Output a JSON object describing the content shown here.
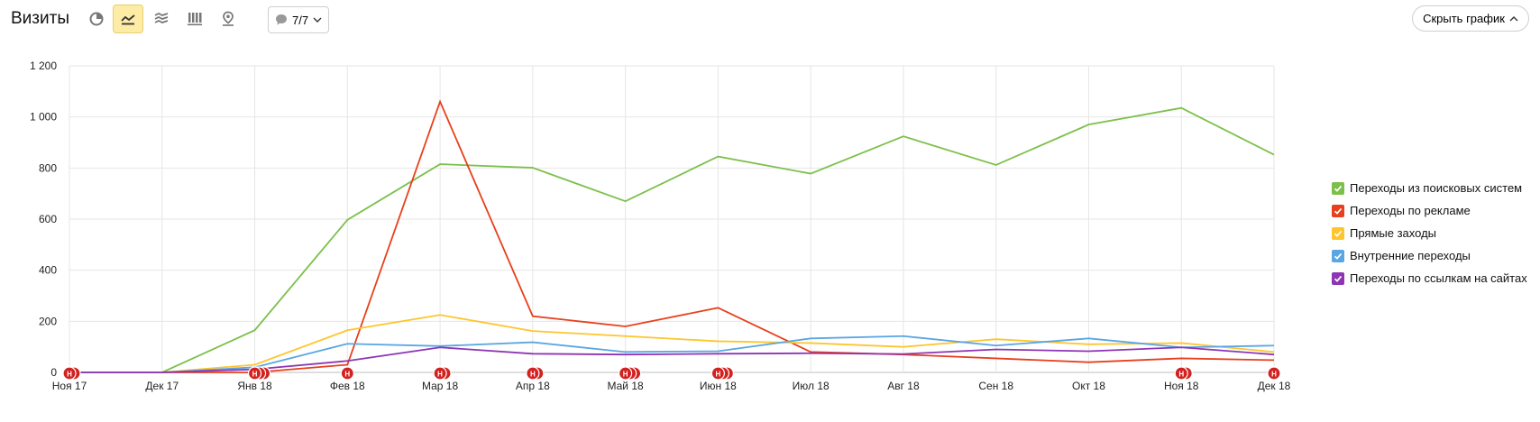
{
  "header": {
    "title": "Визиты",
    "annotations_count": "7/7",
    "hide_chart_label": "Скрыть график"
  },
  "toolbar": {
    "buttons": [
      {
        "name": "pie-chart-icon",
        "active": false
      },
      {
        "name": "line-chart-icon",
        "active": true
      },
      {
        "name": "area-chart-icon",
        "active": false
      },
      {
        "name": "bar-chart-icon",
        "active": false
      },
      {
        "name": "map-icon",
        "active": false
      }
    ]
  },
  "colors": {
    "accent": "#fdeca6",
    "annotation": "#d2211f"
  },
  "chart_data": {
    "type": "line",
    "categories": [
      "Ноя 17",
      "Дек 17",
      "Янв 18",
      "Фев 18",
      "Мар 18",
      "Апр 18",
      "Май 18",
      "Июн 18",
      "Июл 18",
      "Авг 18",
      "Сен 18",
      "Окт 18",
      "Ноя 18",
      "Дек 18"
    ],
    "ylim": [
      0,
      1200
    ],
    "yticks": [
      0,
      200,
      400,
      600,
      800,
      1000,
      1200
    ],
    "ytick_labels": [
      "0",
      "200",
      "400",
      "600",
      "800",
      "1 000",
      "1 200"
    ],
    "grid": true,
    "legend_position": "right",
    "series": [
      {
        "name": "Переходы из поисковых систем",
        "color": "#7cc04b",
        "values": [
          0,
          0,
          165,
          597,
          815,
          801,
          670,
          845,
          778,
          924,
          812,
          970,
          1035,
          852
        ]
      },
      {
        "name": "Переходы по рекламе",
        "color": "#e8401c",
        "values": [
          0,
          0,
          0,
          30,
          1060,
          220,
          180,
          253,
          80,
          70,
          55,
          40,
          55,
          48
        ]
      },
      {
        "name": "Прямые заходы",
        "color": "#fec52d",
        "values": [
          0,
          0,
          30,
          165,
          225,
          162,
          142,
          122,
          115,
          100,
          130,
          110,
          115,
          80
        ]
      },
      {
        "name": "Внутренние переходы",
        "color": "#5aa6e3",
        "values": [
          0,
          0,
          20,
          112,
          103,
          118,
          80,
          83,
          133,
          142,
          105,
          133,
          98,
          105
        ]
      },
      {
        "name": "Переходы по ссылкам на сайтах",
        "color": "#8e35b3",
        "values": [
          0,
          0,
          12,
          45,
          98,
          73,
          70,
          73,
          75,
          72,
          90,
          83,
          98,
          70
        ]
      }
    ],
    "annotation_markers": [
      {
        "x": 0,
        "count": 2
      },
      {
        "x": 2,
        "count": 3
      },
      {
        "x": 3,
        "count": 1
      },
      {
        "x": 4,
        "count": 2
      },
      {
        "x": 5,
        "count": 2
      },
      {
        "x": 6,
        "count": 3
      },
      {
        "x": 7,
        "count": 3
      },
      {
        "x": 12,
        "count": 2
      },
      {
        "x": 13,
        "count": 1
      }
    ],
    "annotation_marker_label": "Н"
  }
}
